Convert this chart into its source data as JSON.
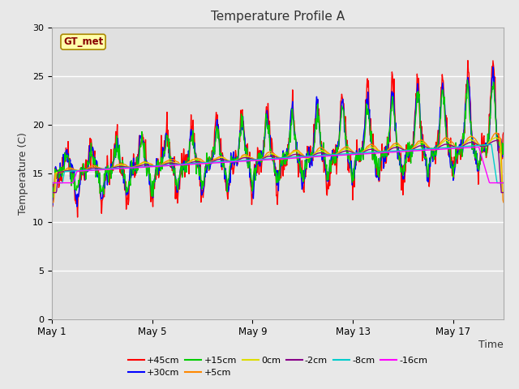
{
  "title": "Temperature Profile A",
  "xlabel": "Time",
  "ylabel": "Temperature (C)",
  "annotation": "GT_met",
  "annotation_color": "#880000",
  "annotation_box_color": "#ffffaa",
  "annotation_box_edge": "#aa8800",
  "ylim": [
    0,
    30
  ],
  "yticks": [
    0,
    5,
    10,
    15,
    20,
    25,
    30
  ],
  "background_plot": "#e0e0e0",
  "background_fig": "#e8e8e8",
  "legend": [
    {
      "label": "+45cm",
      "color": "#ff0000"
    },
    {
      "label": "+30cm",
      "color": "#0000ff"
    },
    {
      "label": "+15cm",
      "color": "#00cc00"
    },
    {
      "label": "+5cm",
      "color": "#ff8800"
    },
    {
      "label": "0cm",
      "color": "#dddd00"
    },
    {
      "label": "-2cm",
      "color": "#880088"
    },
    {
      "label": "-8cm",
      "color": "#00cccc"
    },
    {
      "label": "-16cm",
      "color": "#ff00ff"
    }
  ],
  "x_ticks_labels": [
    "May 1",
    "May 5",
    "May 9",
    "May 13",
    "May 17"
  ],
  "x_ticks_pos": [
    0,
    4,
    8,
    12,
    16
  ],
  "n_days": 18,
  "points_per_day": 48
}
